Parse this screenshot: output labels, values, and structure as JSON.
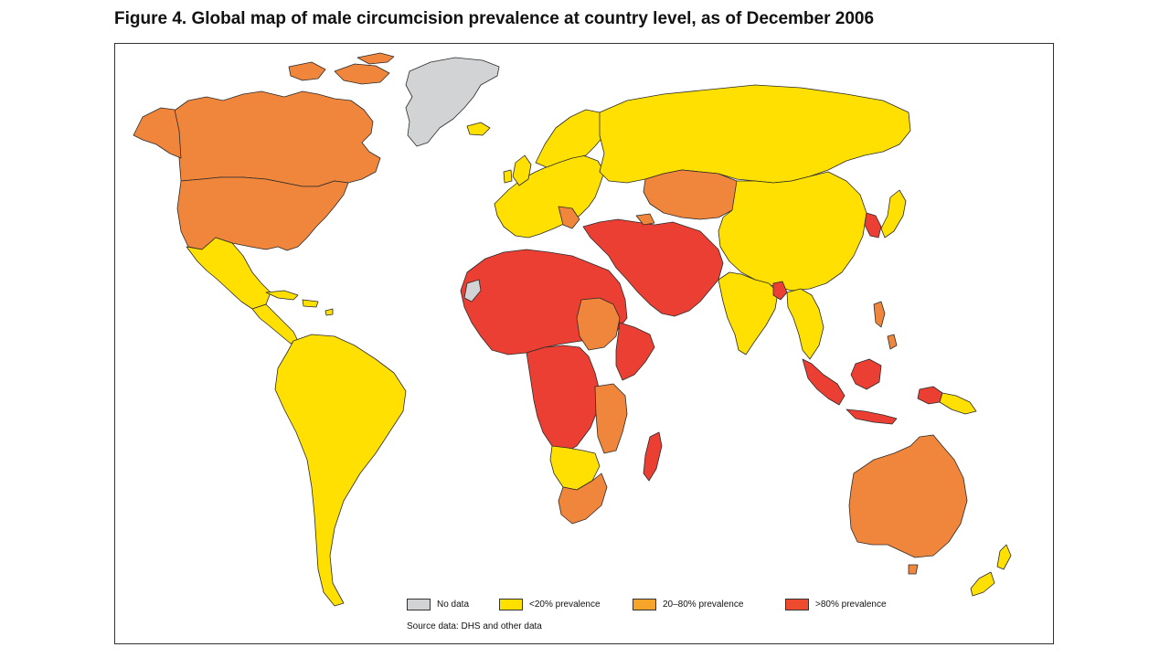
{
  "title": "Figure 4. Global map of male circumcision prevalence at country level, as of December 2006",
  "legend": {
    "items": [
      {
        "label": "No data",
        "color": "#d2d3d5"
      },
      {
        "label": "<20% prevalence",
        "color": "#ffe000"
      },
      {
        "label": "20–80% prevalence",
        "color": "#f7a42b"
      },
      {
        "label": ">80% prevalence",
        "color": "#ee4a2e"
      }
    ]
  },
  "map_colors": {
    "no_data": "#d2d3d5",
    "low": "#ffe000",
    "mid": "#f0853c",
    "high": "#ec3f33",
    "border": "#2b2b2b"
  },
  "source": "Source data: DHS and other data"
}
